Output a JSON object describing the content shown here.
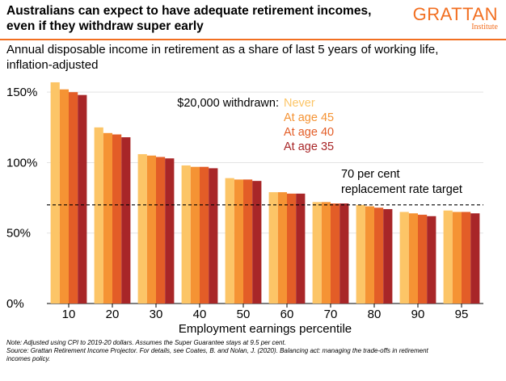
{
  "header": {
    "title_lines": [
      "Australians can expect to have adequate retirement incomes,",
      "even if they withdraw super early"
    ],
    "subtitle_lines": [
      "Annual disposable income in retirement as a share of last 5 years of working life,",
      "inflation-adjusted"
    ]
  },
  "logo": {
    "name": "GRATTAN",
    "sub": "Institute",
    "color": "#f26f21"
  },
  "chart_data": {
    "type": "bar",
    "title": "Australians can expect to have adequate retirement incomes, even if they withdraw super early",
    "subtitle": "Annual disposable income in retirement as a share of last 5 years of working life, inflation-adjusted",
    "xlabel": "Employment earnings percentile",
    "ylabel": "",
    "categories": [
      "10",
      "20",
      "30",
      "40",
      "50",
      "60",
      "70",
      "80",
      "90",
      "95"
    ],
    "ylim": [
      0,
      165
    ],
    "yticks": [
      0,
      50,
      100,
      150
    ],
    "ytick_labels": [
      "0%",
      "50%",
      "100%",
      "150%"
    ],
    "grid": true,
    "legend_title": "$20,000 withdrawn:",
    "legend_position": "top-right",
    "series": [
      {
        "name": "Never",
        "color": "#fcc567",
        "values": [
          157,
          125,
          106,
          98,
          89,
          79,
          72,
          70,
          65,
          66
        ]
      },
      {
        "name": "At age 45",
        "color": "#f59334",
        "values": [
          152,
          121,
          105,
          97,
          88,
          79,
          72,
          69,
          64,
          65
        ]
      },
      {
        "name": "At age 40",
        "color": "#e35d27",
        "values": [
          150,
          120,
          104,
          97,
          88,
          78,
          71,
          68,
          63,
          65
        ]
      },
      {
        "name": "At age 35",
        "color": "#a82628",
        "values": [
          148,
          118,
          103,
          96,
          87,
          78,
          71,
          67,
          62,
          64
        ]
      }
    ],
    "reference_line": {
      "value": 70,
      "label_lines": [
        "70 per cent",
        "replacement rate target"
      ]
    }
  },
  "notes": [
    "Note: Adjusted using CPI to 2019-20 dollars. Assumes the Super Guarantee stays at 9.5 per cent.",
    "Source: Grattan Retirement Income Projector. For details, see Coates, B. and Nolan, J. (2020). Balancing act: managing the trade-offs in retirement",
    "incomes policy."
  ]
}
